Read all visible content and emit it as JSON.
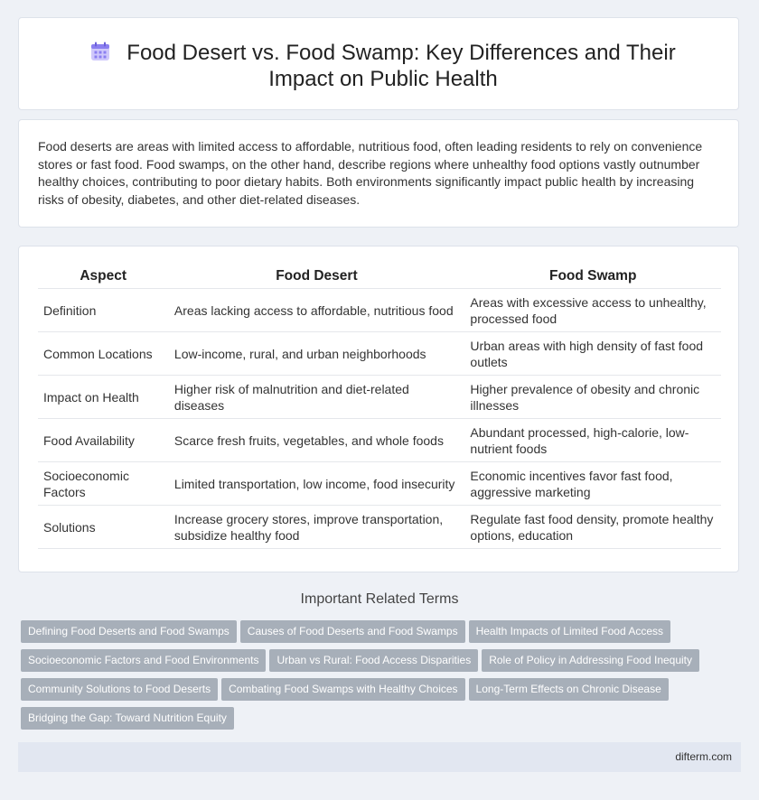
{
  "header": {
    "title": "Food Desert vs. Food Swamp: Key Differences and Their Impact on Public Health",
    "icon": "calendar-grid-icon"
  },
  "intro": {
    "text": "Food deserts are areas with limited access to affordable, nutritious food, often leading residents to rely on convenience stores or fast food. Food swamps, on the other hand, describe regions where unhealthy food options vastly outnumber healthy choices, contributing to poor dietary habits. Both environments significantly impact public health by increasing risks of obesity, diabetes, and other diet-related diseases."
  },
  "table": {
    "headers": [
      "Aspect",
      "Food Desert",
      "Food Swamp"
    ],
    "rows": [
      [
        "Definition",
        "Areas lacking access to affordable, nutritious food",
        "Areas with excessive access to unhealthy, processed food"
      ],
      [
        "Common Locations",
        "Low-income, rural, and urban neighborhoods",
        "Urban areas with high density of fast food outlets"
      ],
      [
        "Impact on Health",
        "Higher risk of malnutrition and diet-related diseases",
        "Higher prevalence of obesity and chronic illnesses"
      ],
      [
        "Food Availability",
        "Scarce fresh fruits, vegetables, and whole foods",
        "Abundant processed, high-calorie, low-nutrient foods"
      ],
      [
        "Socioeconomic Factors",
        "Limited transportation, low income, food insecurity",
        "Economic incentives favor fast food, aggressive marketing"
      ],
      [
        "Solutions",
        "Increase grocery stores, improve transportation, subsidize healthy food",
        "Regulate fast food density, promote healthy options, education"
      ]
    ]
  },
  "related": {
    "title": "Important Related Terms",
    "tags": [
      "Defining Food Deserts and Food Swamps",
      "Causes of Food Deserts and Food Swamps",
      "Health Impacts of Limited Food Access",
      "Socioeconomic Factors and Food Environments",
      "Urban vs Rural: Food Access Disparities",
      "Role of Policy in Addressing Food Inequity",
      "Community Solutions to Food Deserts",
      "Combating Food Swamps with Healthy Choices",
      "Long-Term Effects on Chronic Disease",
      "Bridging the Gap: Toward Nutrition Equity"
    ]
  },
  "footer": {
    "site": "difterm.com"
  },
  "colors": {
    "background": "#eef1f6",
    "tag": "#a7afb9",
    "footer": "#e2e7f1",
    "icon": "#8b7ff0"
  }
}
